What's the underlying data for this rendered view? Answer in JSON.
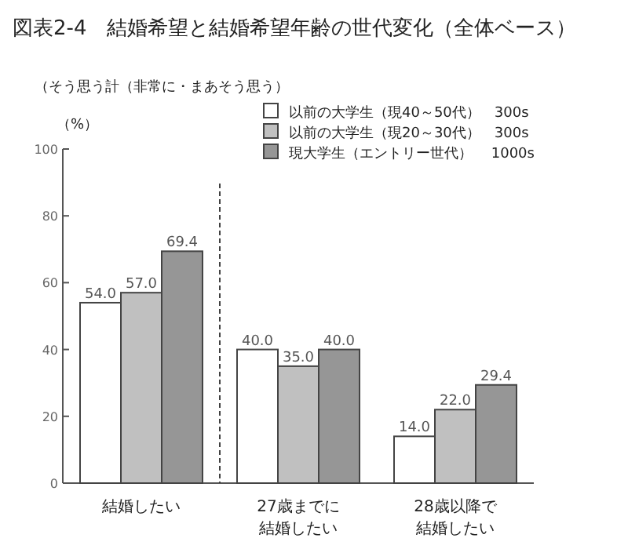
{
  "chart_data": {
    "type": "bar",
    "title": "図表2-4　結婚希望と結婚希望年齢の世代変化（全体ベース）",
    "subtitle": "（そう思う計（非常に・まあそう思う）",
    "ylabel": "（%）",
    "categories": [
      "結婚したい",
      "27歳までに結婚したい",
      "28歳以降で結婚したい"
    ],
    "series": [
      {
        "name": "以前の大学生（現40～50代）　300s",
        "color": "#ffffff",
        "values": [
          54.0,
          40.0,
          14.0
        ],
        "value_labels": [
          "54.0",
          "40.0",
          "14.0"
        ]
      },
      {
        "name": "以前の大学生（現20～30代）　300s",
        "color": "#c0c0c0",
        "values": [
          57.0,
          35.0,
          22.0
        ],
        "value_labels": [
          "57.0",
          "35.0",
          "22.0"
        ]
      },
      {
        "name": "現大学生（エントリー世代）　  1000s",
        "color": "#969696",
        "values": [
          69.4,
          40.0,
          29.4
        ],
        "value_labels": [
          "69.4",
          "40.0",
          "29.4"
        ]
      }
    ],
    "ylim": [
      0,
      100
    ],
    "yticks": [
      0,
      20,
      40,
      60,
      80,
      100
    ],
    "legend": "top right"
  }
}
